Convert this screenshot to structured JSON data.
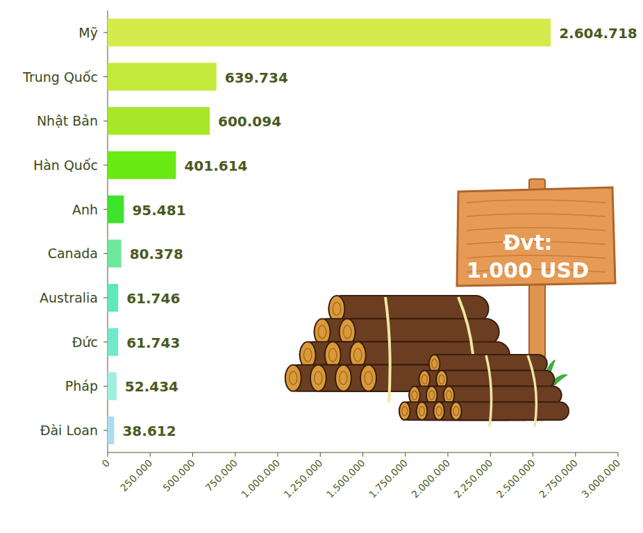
{
  "chart_data": {
    "type": "bar",
    "orientation": "horizontal",
    "categories": [
      "Mỹ",
      "Trung Quốc",
      "Nhật Bản",
      "Hàn Quốc",
      "Anh",
      "Canada",
      "Australia",
      "Đức",
      "Pháp",
      "Đài Loan"
    ],
    "values": [
      2604718,
      639734,
      600094,
      401614,
      95481,
      80378,
      61746,
      61743,
      52434,
      38612
    ],
    "value_labels": [
      "2.604.718",
      "639.734",
      "600.094",
      "401.614",
      "95.481",
      "80.378",
      "61.746",
      "61.743",
      "52.434",
      "38.612"
    ],
    "colors": [
      "#d3ec4c",
      "#c3ea3a",
      "#a8e62a",
      "#68ea12",
      "#3fe32c",
      "#6ee89c",
      "#5fe9ba",
      "#70eac9",
      "#a0eee0",
      "#aadcee"
    ],
    "xlim": [
      0,
      3000000
    ],
    "xticks": [
      0,
      {
        "value": 250000,
        "label": "250.000"
      },
      {
        "value": 500000,
        "label": "500.000"
      },
      {
        "value": 750000,
        "label": "750.000"
      },
      {
        "value": 1000000,
        "label": "1.000.000"
      },
      {
        "value": 1250000,
        "label": "1.250.000"
      },
      {
        "value": 1500000,
        "label": "1.500.000"
      },
      {
        "value": 1750000,
        "label": "1.750.000"
      },
      {
        "value": 2000000,
        "label": "2.000.000"
      },
      {
        "value": 2250000,
        "label": "2.250.000"
      },
      {
        "value": 2500000,
        "label": "2.500.000"
      },
      {
        "value": 2750000,
        "label": "2.750.000"
      },
      {
        "value": 3000000,
        "label": "3.000.000"
      }
    ],
    "grid": false,
    "data_labels": true,
    "annotations": [
      "Đvt:",
      "1.000 USD"
    ]
  }
}
